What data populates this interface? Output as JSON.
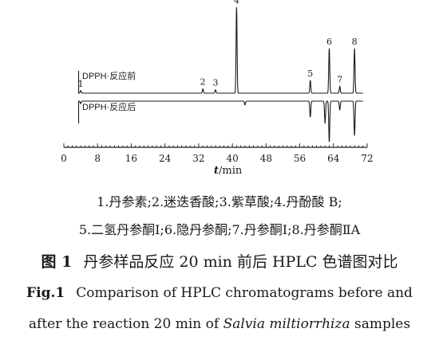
{
  "chart_data": {
    "type": "line",
    "x_axis": {
      "label_var": "t",
      "label_unit": "/min",
      "ticks": [
        0,
        8,
        16,
        24,
        32,
        40,
        48,
        56,
        64,
        72
      ],
      "range": [
        0,
        72
      ]
    },
    "series": [
      {
        "name": "DPPH·反应前",
        "direction": "up",
        "peaks": [
          {
            "label": "1",
            "t": 4.0,
            "height": 0.03
          },
          {
            "label": "2",
            "t": 33.0,
            "height": 0.05
          },
          {
            "label": "3",
            "t": 36.0,
            "height": 0.04
          },
          {
            "label": "4",
            "t": 41.0,
            "height": 1.0
          },
          {
            "label": "5",
            "t": 58.5,
            "height": 0.15
          },
          {
            "label": "6",
            "t": 63.0,
            "height": 0.52
          },
          {
            "label": "7",
            "t": 65.5,
            "height": 0.08
          },
          {
            "label": "8",
            "t": 69.0,
            "height": 0.52
          }
        ]
      },
      {
        "name": "DPPH·反应后",
        "direction": "down",
        "peaks": [
          {
            "t": 4.0,
            "height": 0.02
          },
          {
            "t": 43.0,
            "height": 0.03
          },
          {
            "t": 58.5,
            "height": 0.13
          },
          {
            "t": 62.0,
            "height": 0.18
          },
          {
            "t": 63.0,
            "height": 0.33
          },
          {
            "t": 65.5,
            "height": 0.07
          },
          {
            "t": 69.0,
            "height": 0.28
          }
        ]
      }
    ]
  },
  "caption": {
    "legend_line1": "1.丹参素;2.迷迭香酸;3.紫草酸;4.丹酚酸 B;",
    "legend_line2": "5.二氢丹参酮Ⅰ;6.隐丹参酮;7.丹参酮Ⅰ;8.丹参酮ⅡA",
    "title_cn_label": "图 1",
    "title_cn_text": "丹参样品反应 20 min 前后 HPLC 色谱图对比",
    "title_en_label": "Fig.1",
    "title_en_line1": "Comparison of HPLC chromatograms before and",
    "title_en_line2_pre": "after the reaction 20 min of ",
    "title_en_line2_species": "Salvia miltiorrhiza",
    "title_en_line2_post": " samples"
  }
}
